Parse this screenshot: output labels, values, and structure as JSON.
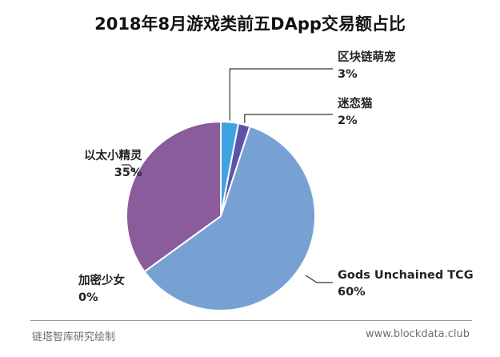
{
  "chart_data": {
    "type": "pie",
    "title": "2018年8月游戏类前五DApp交易额占比",
    "slices": [
      {
        "name": "区块链萌宠",
        "value": 3,
        "label": "3%",
        "color": "#3fa3e3"
      },
      {
        "name": "迷恋猫",
        "value": 2,
        "label": "2%",
        "color": "#5d53a8"
      },
      {
        "name": "Gods Unchained TCG",
        "value": 60,
        "label": "60%",
        "color": "#77a1d3"
      },
      {
        "name": "加密少女",
        "value": 0,
        "label": "0%",
        "color": "#c9a9d8"
      },
      {
        "name": "以太小精灵",
        "value": 35,
        "label": "35%",
        "color": "#8a5c9b"
      }
    ]
  },
  "footer": {
    "source": "链塔智库研究绘制",
    "website": "www.blockdata.club"
  }
}
